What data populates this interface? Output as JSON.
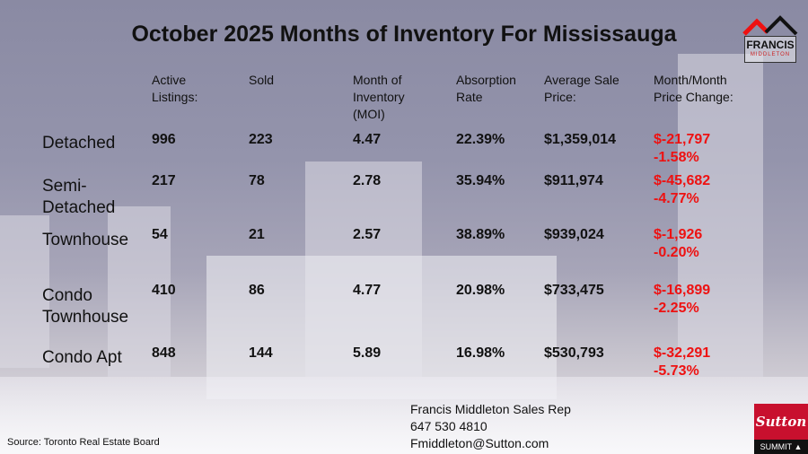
{
  "title": "October 2025 Months of Inventory For Mississauga",
  "headers": [
    "Active Listings:",
    "Sold",
    "Month of Inventory (MOI)",
    "Absorption Rate",
    "Average Sale Price:",
    "Month/Month Price Change:"
  ],
  "rows": [
    {
      "type": "Detached",
      "active": "996",
      "sold": "223",
      "moi": "4.47",
      "absorption": "22.39%",
      "avg_price": "$1,359,014",
      "change_amount": "$-21,797",
      "change_pct": "-1.58%"
    },
    {
      "type": "Semi-Detached",
      "type_line1": "Semi-",
      "type_line2": "Detached",
      "active": "217",
      "sold": "78",
      "moi": "2.78",
      "absorption": "35.94%",
      "avg_price": "$911,974",
      "change_amount": "$-45,682",
      "change_pct": "-4.77%"
    },
    {
      "type": "Townhouse",
      "active": "54",
      "sold": "21",
      "moi": "2.57",
      "absorption": "38.89%",
      "avg_price": "$939,024",
      "change_amount": "$-1,926",
      "change_pct": "-0.20%"
    },
    {
      "type": "Condo Townhouse",
      "type_line1": "Condo",
      "type_line2": "Townhouse",
      "active": "410",
      "sold": "86",
      "moi": "4.77",
      "absorption": "20.98%",
      "avg_price": "$733,475",
      "change_amount": "$-16,899",
      "change_pct": "-2.25%"
    },
    {
      "type": "Condo Apt",
      "active": "848",
      "sold": "144",
      "moi": "5.89",
      "absorption": "16.98%",
      "avg_price": "$530,793",
      "change_amount": "$-32,291",
      "change_pct": "-5.73%"
    }
  ],
  "contact": {
    "name": "Francis Middleton Sales Rep",
    "phone": "647 530 4810",
    "email": "Fmiddleton@Sutton.com"
  },
  "source": "Source: Toronto Real Estate Board",
  "logo": {
    "line1": "FRANCIS",
    "line2": "MIDDLETON"
  },
  "brand": {
    "name": "Sutton",
    "sub": "SUMMIT"
  },
  "colors": {
    "negative": "#ee1111",
    "brand_red": "#c8102e"
  }
}
